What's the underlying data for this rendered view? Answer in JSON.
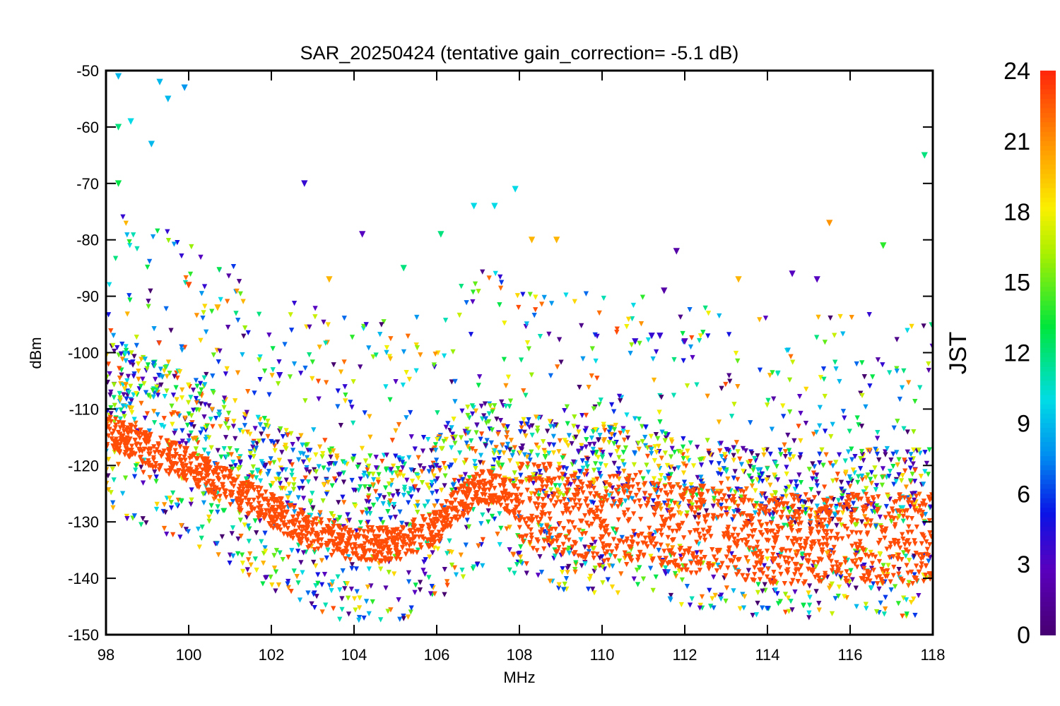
{
  "chart_data": {
    "type": "scatter",
    "title": "SAR_20250424 (tentative gain_correction= -5.1 dB)",
    "xlabel": "MHz",
    "ylabel": "dBm",
    "xlim": [
      98,
      118
    ],
    "ylim": [
      -150,
      -50
    ],
    "xticks": [
      "98",
      "100",
      "102",
      "104",
      "106",
      "108",
      "110",
      "112",
      "114",
      "116",
      "118"
    ],
    "yticks": [
      "-50",
      "-60",
      "-70",
      "-80",
      "-90",
      "-100",
      "-110",
      "-120",
      "-130",
      "-140",
      "-150"
    ],
    "colorbar": {
      "label": "JST",
      "range": [
        0,
        24
      ],
      "ticks": [
        "24",
        "21",
        "18",
        "15",
        "12",
        "9",
        "6",
        "3",
        "0"
      ],
      "colormap": "rainbow (purple-blue-cyan-green-yellow-orange-red)"
    },
    "series": [
      {
        "description_points": "noise-floor envelope (dominant, JST ~23)",
        "jst": 23,
        "x": [
          98,
          99,
          100,
          101,
          102,
          103,
          104,
          105,
          106,
          106.5,
          107,
          107.5,
          108,
          109,
          110,
          111,
          112,
          113,
          114,
          115,
          116,
          117,
          118
        ],
        "y": [
          -114,
          -117,
          -120,
          -124,
          -128,
          -132,
          -134,
          -134,
          -131,
          -127,
          -124,
          -124,
          -127,
          -128,
          -129,
          -129,
          -131,
          -132,
          -133,
          -133,
          -133,
          -133,
          -133
        ]
      },
      {
        "description_points": "distinct upper points",
        "x": [
          98.3,
          98.3,
          98.3,
          98.6,
          99.1,
          99.3,
          99.5,
          99.9,
          100.0,
          100.7,
          102.2,
          102.8,
          103.4,
          104.2,
          105.2,
          106.1,
          106.9,
          107.4,
          107.9,
          108.3,
          108.9,
          110.8,
          111.2,
          111.4,
          111.5,
          111.8,
          112.0,
          113.3,
          114.6,
          115.2,
          115.5,
          116.8,
          117.8
        ],
        "y": [
          -51,
          -60,
          -70,
          -59,
          -63,
          -52,
          -55,
          -53,
          -88,
          -92,
          -104,
          -70,
          -87,
          -79,
          -85,
          -79,
          -74,
          -74,
          -71,
          -80,
          -80,
          -98,
          -97,
          -97,
          -89,
          -82,
          -98,
          -87,
          -86,
          -87,
          -77,
          -81,
          -65
        ],
        "jst": [
          9,
          12,
          13,
          10,
          9,
          9,
          9,
          8,
          23,
          20,
          4,
          4,
          20,
          3,
          12,
          12,
          10,
          10,
          10,
          20,
          20,
          4,
          4,
          4,
          2,
          2,
          3,
          20,
          3,
          3,
          21,
          14,
          12
        ]
      }
    ],
    "annotations": []
  }
}
